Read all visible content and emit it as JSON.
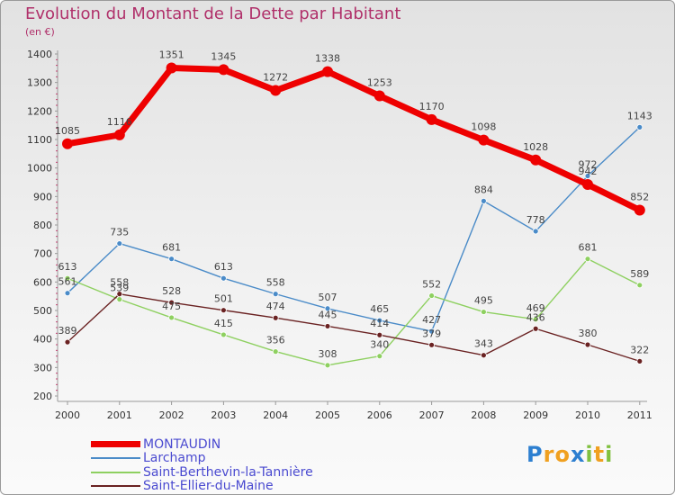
{
  "title": "Evolution du Montant de la Dette par Habitant",
  "unit": "(en €)",
  "chart_data": {
    "type": "line",
    "title": "Evolution du Montant de la Dette par Habitant",
    "ylabel": "(en €)",
    "xlabel": "",
    "ylim": [
      200,
      1400
    ],
    "yticks": [
      200,
      300,
      400,
      500,
      600,
      700,
      800,
      900,
      1000,
      1100,
      1200,
      1300,
      1400
    ],
    "categories": [
      "2000",
      "2001",
      "2002",
      "2003",
      "2004",
      "2005",
      "2006",
      "2007",
      "2008",
      "2009",
      "2010",
      "2011"
    ],
    "grid": false,
    "legend_position": "bottom-left",
    "series": [
      {
        "name": "MONTAUDIN",
        "color": "#ee0000",
        "values": [
          1085,
          1116,
          1351,
          1345,
          1272,
          1338,
          1253,
          1170,
          1098,
          1028,
          942,
          852
        ]
      },
      {
        "name": "Larchamp",
        "color": "#4a8bc8",
        "values": [
          561,
          735,
          681,
          613,
          558,
          507,
          465,
          427,
          884,
          778,
          972,
          1143
        ]
      },
      {
        "name": "Saint-Berthevin-la-Tannière",
        "color": "#8ed060",
        "values": [
          613,
          539,
          475,
          415,
          356,
          308,
          340,
          552,
          495,
          469,
          681,
          589
        ]
      },
      {
        "name": "Saint-Ellier-du-Maine",
        "color": "#6a2222",
        "values": [
          389,
          558,
          528,
          501,
          474,
          445,
          414,
          379,
          343,
          436,
          380,
          322
        ]
      }
    ]
  },
  "logo": {
    "letters": [
      "P",
      "r",
      "o",
      "x",
      "i",
      "t",
      "i"
    ],
    "colors": [
      "#2d7fd0",
      "#f0a020",
      "#f0a020",
      "#2d7fd0",
      "#80c040",
      "#f0a020",
      "#80c040"
    ]
  }
}
